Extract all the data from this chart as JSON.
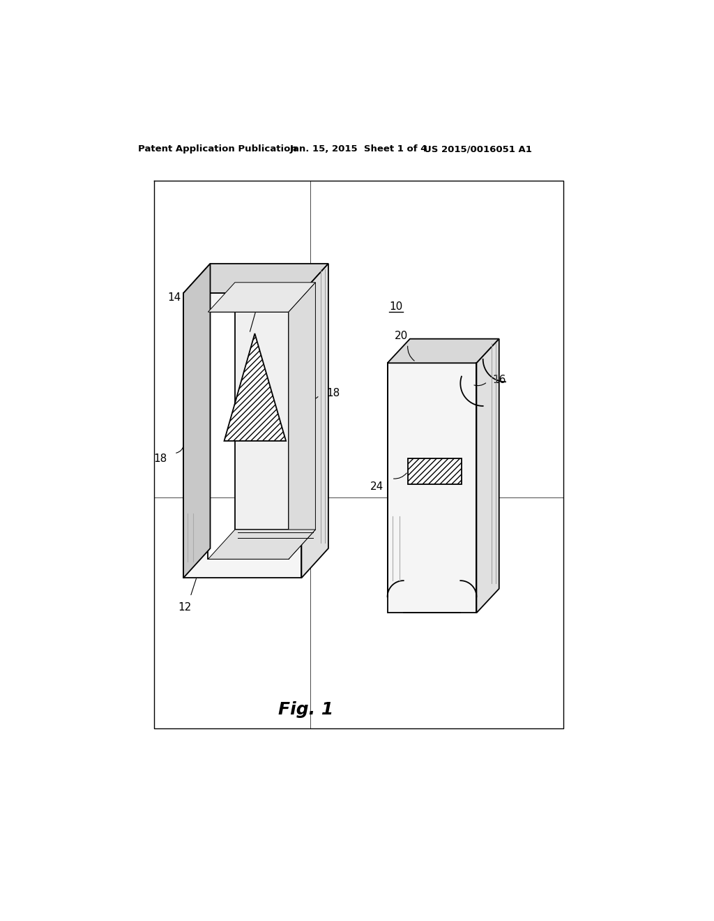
{
  "header_left": "Patent Application Publication",
  "header_center": "Jan. 15, 2015  Sheet 1 of 4",
  "header_right": "US 2015/0016051 A1",
  "fig_label": "Fig. 1",
  "bg_color": "#ffffff",
  "line_color": "#000000"
}
